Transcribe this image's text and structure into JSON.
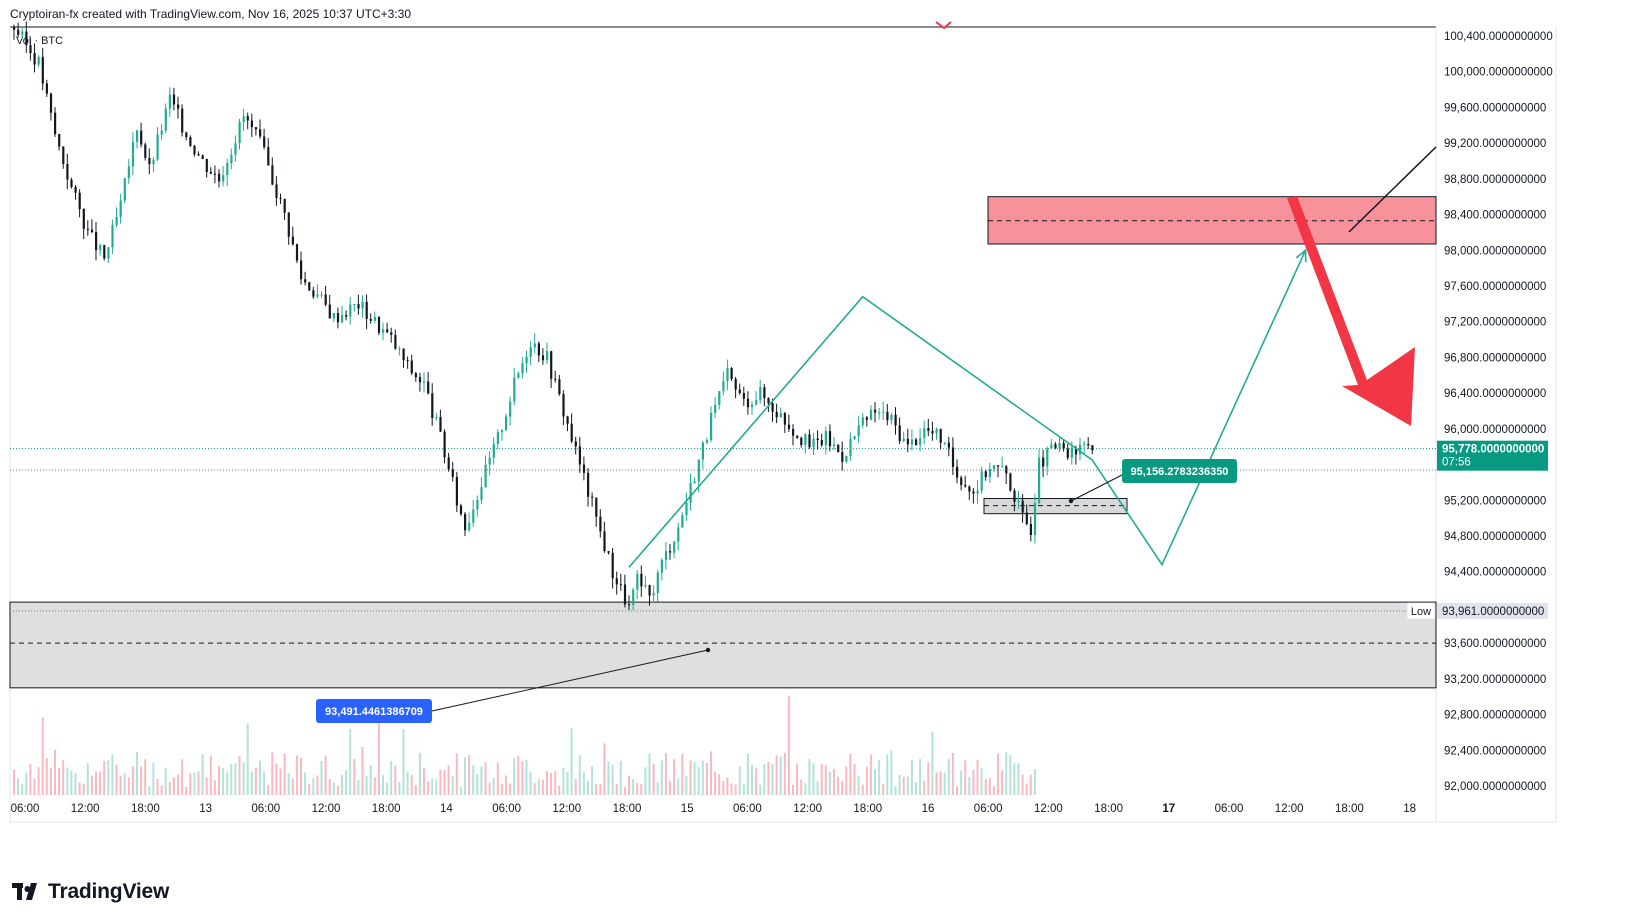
{
  "header": {
    "attribution": "Cryptoiran-fx created with TradingView.com, Nov 16, 2025 10:37 UTC+3:30"
  },
  "brand": {
    "name": "TradingView",
    "icon": "tradingview-logo-icon"
  },
  "chart_data": {
    "type": "candlestick",
    "symbol": "BTC",
    "volume_label": "Vol · BTC",
    "price_labels": [
      "100,400.0000000000",
      "100,000.0000000000",
      "99,600.0000000000",
      "99,200.0000000000",
      "98,800.0000000000",
      "98,400.0000000000",
      "98,000.0000000000",
      "97,600.0000000000",
      "97,200.0000000000",
      "96,800.0000000000",
      "96,400.0000000000",
      "96,000.0000000000",
      "95,200.0000000000",
      "94,800.0000000000",
      "94,400.0000000000",
      "93,600.0000000000",
      "93,200.0000000000",
      "92,800.0000000000",
      "92,400.0000000000",
      "92,000.0000000000"
    ],
    "price_ticks": [
      100400,
      100000,
      99600,
      99200,
      98800,
      98400,
      98000,
      97600,
      97200,
      96800,
      96400,
      96000,
      95200,
      94800,
      94400,
      93600,
      93200,
      92800,
      92400,
      92000
    ],
    "y_range": [
      91900,
      100500
    ],
    "time_labels": [
      "06:00",
      "12:00",
      "18:00",
      "13",
      "06:00",
      "12:00",
      "18:00",
      "14",
      "06:00",
      "12:00",
      "18:00",
      "15",
      "06:00",
      "12:00",
      "18:00",
      "16",
      "06:00",
      "12:00",
      "18:00",
      "17",
      "06:00",
      "12:00",
      "18:00",
      "18"
    ],
    "bold_time_labels": [
      "17"
    ],
    "current_price": {
      "value": 95778,
      "label": "95,778.0000000000",
      "countdown": "07:56",
      "color": "#089981"
    },
    "low_marker": {
      "value": 93961,
      "label": "93,961.0000000000",
      "tag": "Low"
    },
    "ref_line": 95540,
    "price_path": [
      [
        0,
        100500
      ],
      [
        6,
        100100
      ],
      [
        10,
        99300
      ],
      [
        14,
        98700
      ],
      [
        18,
        98200
      ],
      [
        22,
        97900
      ],
      [
        26,
        98500
      ],
      [
        30,
        99400
      ],
      [
        33,
        98900
      ],
      [
        38,
        99700
      ],
      [
        42,
        99300
      ],
      [
        46,
        99000
      ],
      [
        50,
        98800
      ],
      [
        56,
        99500
      ],
      [
        60,
        99200
      ],
      [
        66,
        98400
      ],
      [
        70,
        97700
      ],
      [
        74,
        97500
      ],
      [
        78,
        97250
      ],
      [
        84,
        97400
      ],
      [
        88,
        97200
      ],
      [
        92,
        97000
      ],
      [
        96,
        96700
      ],
      [
        100,
        96500
      ],
      [
        104,
        95900
      ],
      [
        108,
        95200
      ],
      [
        110,
        94900
      ],
      [
        114,
        95400
      ],
      [
        118,
        95900
      ],
      [
        122,
        96500
      ],
      [
        126,
        97000
      ],
      [
        130,
        96800
      ],
      [
        134,
        96200
      ],
      [
        138,
        95600
      ],
      [
        142,
        95000
      ],
      [
        146,
        94400
      ],
      [
        150,
        94000
      ],
      [
        152,
        94300
      ],
      [
        155,
        94100
      ],
      [
        158,
        94500
      ],
      [
        162,
        94900
      ],
      [
        166,
        95500
      ],
      [
        170,
        96100
      ],
      [
        174,
        96600
      ],
      [
        178,
        96300
      ],
      [
        182,
        96400
      ],
      [
        186,
        96200
      ],
      [
        190,
        96000
      ],
      [
        194,
        95800
      ],
      [
        198,
        95900
      ],
      [
        202,
        95700
      ],
      [
        206,
        96000
      ],
      [
        210,
        96200
      ],
      [
        214,
        96100
      ],
      [
        218,
        95800
      ],
      [
        222,
        96000
      ],
      [
        226,
        95900
      ],
      [
        230,
        95500
      ],
      [
        234,
        95300
      ],
      [
        238,
        95600
      ],
      [
        242,
        95500
      ],
      [
        246,
        95000
      ],
      [
        248,
        94900
      ],
      [
        250,
        95600
      ],
      [
        254,
        95800
      ],
      [
        258,
        95700
      ],
      [
        262,
        95850
      ],
      [
        264,
        95750
      ]
    ],
    "zones": [
      {
        "name": "sell-zone",
        "top": 98600,
        "bottom": 98070,
        "mid": 98330,
        "color": "#f7919a"
      },
      {
        "name": "demand-zone",
        "top": 94060,
        "bottom": 93100,
        "mid": 93600,
        "color": "#d9d9d9"
      },
      {
        "name": "small-support-zone",
        "top": 95220,
        "bottom": 95050,
        "mid": 95140,
        "color": "#d9d9d9"
      }
    ],
    "annotations": [
      {
        "name": "label-95156",
        "text": "95,156.2783236350",
        "bg": "#089981",
        "price": 95156
      },
      {
        "name": "label-93491",
        "text": "93,491.4461386709",
        "bg": "#2962ff",
        "price": 93491
      }
    ],
    "projection_path": [
      [
        150,
        94450
      ],
      [
        207,
        97480
      ],
      [
        263,
        95650
      ],
      [
        280,
        94480
      ],
      [
        315,
        98000
      ]
    ],
    "bearish_arrow_color": "#f23645",
    "accent_teal": "#22ab94",
    "colors": {
      "up": "#22ab94",
      "down": "#131722",
      "grid": "#f0f3fa"
    }
  }
}
